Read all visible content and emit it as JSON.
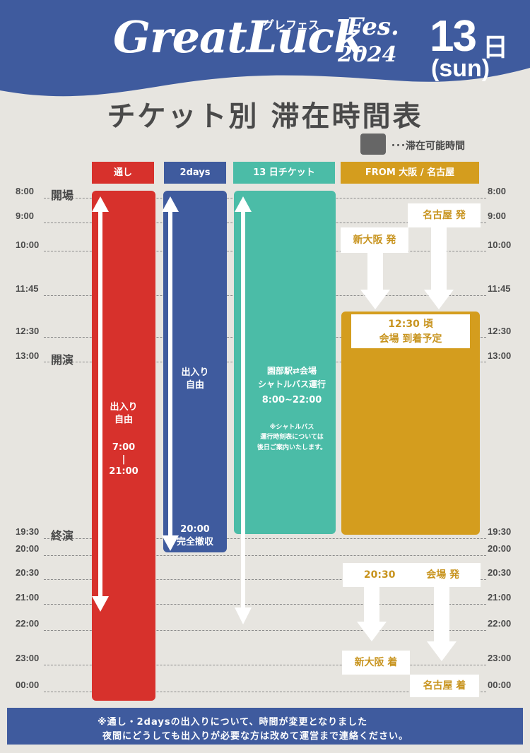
{
  "header": {
    "logo_main": "GreatLuck",
    "logo_kana": "グレフェス",
    "logo_fes": "Fes.",
    "logo_year": "2024",
    "date_day": "13",
    "date_unit": "日",
    "date_weekday": "(sun)",
    "color": "#3f5b9e"
  },
  "title": "チケット別 滞在時間表",
  "legend": {
    "label": "･･･滞在可能時間",
    "color": "#666666"
  },
  "columns": [
    {
      "label": "通し",
      "color": "#d7312c"
    },
    {
      "label": "2days",
      "color": "#3f5b9e"
    },
    {
      "label": "13 日チケット",
      "color": "#4bbca7"
    },
    {
      "label": "FROM 大阪 / 名古屋",
      "color": "#d49d1e"
    }
  ],
  "times": [
    "8:00",
    "9:00",
    "10:00",
    "11:45",
    "12:30",
    "13:00",
    "19:30",
    "20:00",
    "20:30",
    "21:00",
    "22:00",
    "23:00",
    "00:00"
  ],
  "events": {
    "open": "開場",
    "start": "開演",
    "end": "終演"
  },
  "tooshi": {
    "line1": "出入り",
    "line2": "自由",
    "from": "7:00",
    "sep": "|",
    "to": "21:00"
  },
  "twodays": {
    "line1": "出入り",
    "line2": "自由",
    "end_time": "20:00",
    "end_label": "完全撤収"
  },
  "day13": {
    "line1": "園部駅⇄会場",
    "line2": "シャトルバス運行",
    "hours": "8:00~22:00",
    "note1": "※シャトルバス",
    "note2": "運行時刻表については",
    "note3": "後日ご案内いたします。"
  },
  "from": {
    "nagoya_depart": "名古屋 発",
    "osaka_depart": "新大阪 発",
    "arrival_time": "12:30 頃",
    "arrival_label": "会場 到着予定",
    "return_time": "20:30",
    "return_label": "会場 発",
    "osaka_arrive": "新大阪 着",
    "nagoya_arrive": "名古屋 着"
  },
  "footer": {
    "line1": "※通し・2daysの出入りについて、時間が変更となりました",
    "line2": "夜間にどうしても出入りが必要な方は改めて運営まで連絡ください。"
  }
}
